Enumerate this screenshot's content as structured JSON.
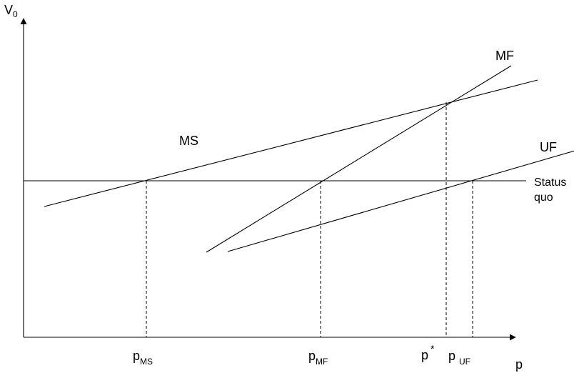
{
  "axes": {
    "y_label": "V",
    "y_label_sub": "0",
    "x_label": "p"
  },
  "curves": {
    "ms": "MS",
    "mf": "MF",
    "uf": "UF",
    "status_quo_line1": "Status",
    "status_quo_line2": "quo"
  },
  "ticks": {
    "p_ms": {
      "main": "p",
      "sub": "MS"
    },
    "p_mf": {
      "main": "p",
      "sub": "MF"
    },
    "p_star": {
      "main": "p",
      "sup": "*"
    },
    "p_uf": {
      "main": "p",
      "sub": "UF"
    }
  }
}
